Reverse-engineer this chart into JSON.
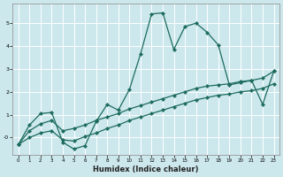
{
  "xlabel": "Humidex (Indice chaleur)",
  "bg_color": "#cce8ed",
  "line_color": "#1d6b5e",
  "grid_color": "#b0d8e0",
  "xlim": [
    -0.5,
    23.5
  ],
  "ylim": [
    -0.75,
    5.85
  ],
  "xticks": [
    0,
    1,
    2,
    3,
    4,
    5,
    6,
    7,
    8,
    9,
    10,
    11,
    12,
    13,
    14,
    15,
    16,
    17,
    18,
    19,
    20,
    21,
    22,
    23
  ],
  "yticks": [
    0,
    1,
    2,
    3,
    4,
    5
  ],
  "ytick_labels": [
    "-0",
    "1",
    "2",
    "3",
    "4",
    "5"
  ],
  "curve_main_x": [
    0,
    1,
    2,
    3,
    4,
    5,
    6,
    7,
    8,
    9,
    10,
    11,
    12,
    13,
    14,
    15,
    16,
    17,
    18,
    19,
    20,
    21,
    22,
    23
  ],
  "curve_main_y": [
    -0.3,
    0.55,
    1.05,
    1.1,
    -0.2,
    -0.5,
    -0.35,
    0.7,
    1.45,
    1.2,
    2.1,
    3.65,
    5.4,
    5.45,
    3.85,
    4.85,
    5.0,
    4.6,
    4.05,
    2.3,
    2.4,
    2.5,
    1.45,
    2.9
  ],
  "curve_upper_x": [
    0,
    1,
    2,
    3,
    4,
    5,
    6,
    7,
    8,
    9,
    10,
    11,
    12,
    13,
    14,
    15,
    16,
    17,
    18,
    19,
    20,
    21,
    22,
    23
  ],
  "curve_upper_y": [
    -0.3,
    0.3,
    0.6,
    0.75,
    0.3,
    0.4,
    0.55,
    0.75,
    0.9,
    1.05,
    1.25,
    1.4,
    1.55,
    1.7,
    1.85,
    2.0,
    2.15,
    2.25,
    2.3,
    2.35,
    2.45,
    2.5,
    2.6,
    2.9
  ],
  "curve_lower_x": [
    0,
    1,
    2,
    3,
    4,
    5,
    6,
    7,
    8,
    9,
    10,
    11,
    12,
    13,
    14,
    15,
    16,
    17,
    18,
    19,
    20,
    21,
    22,
    23
  ],
  "curve_lower_y": [
    -0.3,
    0.0,
    0.2,
    0.3,
    -0.1,
    -0.15,
    0.05,
    0.2,
    0.4,
    0.55,
    0.75,
    0.9,
    1.05,
    1.2,
    1.35,
    1.5,
    1.65,
    1.75,
    1.85,
    1.9,
    2.0,
    2.05,
    2.15,
    2.35
  ]
}
